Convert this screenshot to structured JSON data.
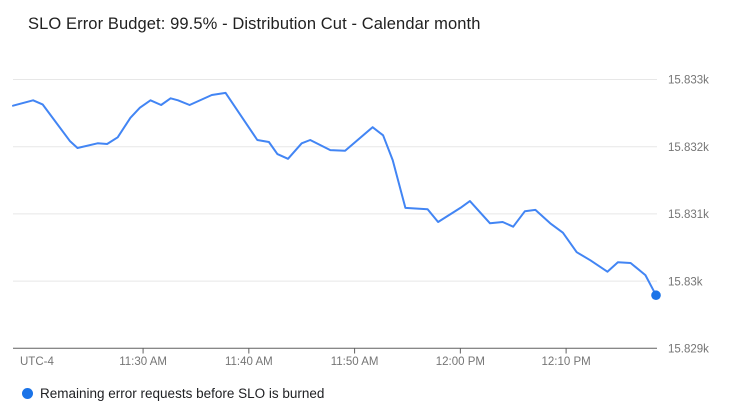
{
  "title": "SLO Error Budget: 99.5% - Distribution Cut - Calendar month",
  "legend": {
    "label": "Remaining error requests before SLO is burned",
    "marker_color": "#1a73e8"
  },
  "colors": {
    "line": "#4285f4",
    "end_dot": "#1a73e8",
    "grid": "#e7e7e7",
    "axis": "#616161",
    "tick_label": "#757575"
  },
  "chart_data": {
    "type": "line",
    "title": "SLO Error Budget: 99.5% - Distribution Cut - Calendar month",
    "xlabel": "",
    "ylabel": "",
    "x_unit": "minutes after 11:00 AM (UTC-4)",
    "utc_label": "UTC-4",
    "grid": true,
    "legend_position": "bottom",
    "t_range": [
      17.7,
      78.5
    ],
    "v_range": [
      15829,
      15833
    ],
    "x_ticks": [
      {
        "t": 30,
        "label": "11:30 AM"
      },
      {
        "t": 40,
        "label": "11:40 AM"
      },
      {
        "t": 50,
        "label": "11:50 AM"
      },
      {
        "t": 60,
        "label": "12:00 PM"
      },
      {
        "t": 70,
        "label": "12:10 PM"
      }
    ],
    "y_ticks": [
      {
        "v": 15829,
        "label": "15.829k"
      },
      {
        "v": 15830,
        "label": "15.83k"
      },
      {
        "v": 15831,
        "label": "15.831k"
      },
      {
        "v": 15832,
        "label": "15.832k"
      },
      {
        "v": 15833,
        "label": "15.833k"
      }
    ],
    "series": [
      {
        "name": "Remaining error requests before SLO is burned",
        "color": "#4285f4",
        "end_marker": true,
        "points": [
          [
            17.7,
            15832.61
          ],
          [
            19.6,
            15832.69
          ],
          [
            20.5,
            15832.63
          ],
          [
            23.1,
            15832.08
          ],
          [
            23.8,
            15831.98
          ],
          [
            25.7,
            15832.05
          ],
          [
            26.6,
            15832.04
          ],
          [
            27.6,
            15832.14
          ],
          [
            28.8,
            15832.43
          ],
          [
            29.7,
            15832.58
          ],
          [
            30.7,
            15832.69
          ],
          [
            31.7,
            15832.62
          ],
          [
            32.6,
            15832.72
          ],
          [
            33.3,
            15832.69
          ],
          [
            34.4,
            15832.62
          ],
          [
            36.5,
            15832.77
          ],
          [
            37.8,
            15832.8
          ],
          [
            40.8,
            15832.1
          ],
          [
            41.9,
            15832.07
          ],
          [
            42.7,
            15831.89
          ],
          [
            43.7,
            15831.82
          ],
          [
            45.0,
            15832.05
          ],
          [
            45.8,
            15832.1
          ],
          [
            47.7,
            15831.95
          ],
          [
            49.1,
            15831.94
          ],
          [
            51.7,
            15832.29
          ],
          [
            52.7,
            15832.17
          ],
          [
            53.6,
            15831.8
          ],
          [
            54.8,
            15831.09
          ],
          [
            56.9,
            15831.07
          ],
          [
            57.9,
            15830.88
          ],
          [
            60.0,
            15831.09
          ],
          [
            60.9,
            15831.19
          ],
          [
            62.8,
            15830.86
          ],
          [
            64.0,
            15830.88
          ],
          [
            65.0,
            15830.81
          ],
          [
            66.1,
            15831.04
          ],
          [
            67.1,
            15831.06
          ],
          [
            68.5,
            15830.86
          ],
          [
            69.7,
            15830.72
          ],
          [
            71.0,
            15830.43
          ],
          [
            72.3,
            15830.31
          ],
          [
            73.9,
            15830.14
          ],
          [
            74.9,
            15830.28
          ],
          [
            76.1,
            15830.27
          ],
          [
            77.5,
            15830.09
          ],
          [
            78.5,
            15829.79
          ]
        ]
      }
    ]
  }
}
